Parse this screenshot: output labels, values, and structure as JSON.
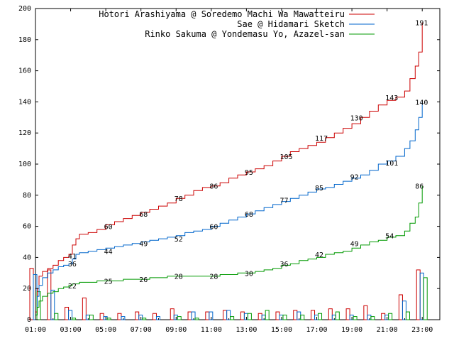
{
  "chart_data": {
    "type": "line",
    "title": "",
    "xlabel": "",
    "ylabel": "",
    "xlim": [
      1,
      24
    ],
    "ylim": [
      0,
      200
    ],
    "x_ticks": [
      "01:00",
      "03:00",
      "05:00",
      "07:00",
      "09:00",
      "11:00",
      "13:00",
      "15:00",
      "17:00",
      "19:00",
      "21:00",
      "23:00"
    ],
    "y_ticks": [
      0,
      20,
      40,
      60,
      80,
      100,
      120,
      140,
      160,
      180,
      200
    ],
    "grid": false,
    "legend_position": "top-right",
    "series": [
      {
        "name": "Hotori Arashiyama @ Soredemo Machi Wa Mawatteiru",
        "color": "#cc0000",
        "cumulative": {
          "x": [
            1.0,
            1.1,
            1.2,
            1.4,
            1.7,
            2.0,
            2.3,
            2.6,
            2.9,
            3.1,
            3.3,
            3.5,
            4.0,
            4.5,
            5.0,
            5.5,
            6.0,
            6.5,
            7.0,
            7.5,
            8.0,
            8.5,
            9.0,
            9.5,
            10.0,
            10.5,
            11.0,
            11.5,
            12.0,
            12.5,
            13.0,
            13.5,
            14.0,
            14.5,
            15.0,
            15.5,
            16.0,
            16.5,
            17.0,
            17.5,
            18.0,
            18.5,
            19.0,
            19.5,
            20.0,
            20.5,
            21.0,
            21.5,
            22.0,
            22.3,
            22.6,
            22.8,
            23.0
          ],
          "y": [
            5,
            20,
            28,
            31,
            33,
            35,
            38,
            40,
            42,
            48,
            52,
            55,
            56,
            58,
            61,
            63,
            65,
            67,
            69,
            71,
            73,
            75,
            78,
            80,
            83,
            85,
            86,
            88,
            91,
            93,
            95,
            97,
            99,
            102,
            105,
            108,
            110,
            112,
            114,
            117,
            120,
            123,
            126,
            130,
            134,
            138,
            141,
            143,
            147,
            155,
            163,
            172,
            191
          ]
        },
        "labels": [
          {
            "x": 2.85,
            "y": 41,
            "text": "41"
          },
          {
            "x": 4.9,
            "y": 60,
            "text": "60"
          },
          {
            "x": 6.9,
            "y": 68,
            "text": "68"
          },
          {
            "x": 8.9,
            "y": 78,
            "text": "78"
          },
          {
            "x": 10.9,
            "y": 86,
            "text": "86"
          },
          {
            "x": 12.9,
            "y": 95,
            "text": "95"
          },
          {
            "x": 14.9,
            "y": 105,
            "text": "105"
          },
          {
            "x": 16.9,
            "y": 117,
            "text": "117"
          },
          {
            "x": 18.9,
            "y": 130,
            "text": "130"
          },
          {
            "x": 20.9,
            "y": 143,
            "text": "143"
          },
          {
            "x": 22.6,
            "y": 191,
            "text": "191"
          }
        ],
        "hourly": [
          33,
          32,
          8,
          14,
          4,
          4,
          5,
          4,
          7,
          5,
          5,
          6,
          5,
          4,
          5,
          6,
          6,
          7,
          7,
          9,
          4,
          16,
          32
        ]
      },
      {
        "name": "Sae @ Hidamari Sketch",
        "color": "#0066cc",
        "cumulative": {
          "x": [
            1.0,
            1.1,
            1.2,
            1.4,
            1.7,
            2.0,
            2.3,
            2.6,
            2.9,
            3.1,
            3.3,
            3.5,
            4.0,
            4.5,
            5.0,
            5.5,
            6.0,
            6.5,
            7.0,
            7.5,
            8.0,
            8.5,
            9.0,
            9.5,
            10.0,
            10.5,
            11.0,
            11.5,
            12.0,
            12.5,
            13.0,
            13.5,
            14.0,
            14.5,
            15.0,
            15.5,
            16.0,
            16.5,
            17.0,
            17.5,
            18.0,
            18.5,
            19.0,
            19.5,
            20.0,
            20.5,
            21.0,
            21.5,
            22.0,
            22.3,
            22.6,
            22.8,
            23.0
          ],
          "y": [
            3,
            15,
            22,
            27,
            30,
            32,
            34,
            35,
            36,
            39,
            42,
            43,
            44,
            45,
            46,
            47,
            48,
            49,
            50,
            51,
            52,
            53,
            54,
            56,
            57,
            58,
            60,
            62,
            64,
            66,
            68,
            70,
            72,
            74,
            76,
            78,
            80,
            82,
            84,
            85,
            87,
            89,
            91,
            93,
            96,
            100,
            102,
            105,
            110,
            115,
            122,
            130,
            140
          ]
        },
        "labels": [
          {
            "x": 2.85,
            "y": 36,
            "text": "36"
          },
          {
            "x": 4.9,
            "y": 44,
            "text": "44"
          },
          {
            "x": 6.9,
            "y": 49,
            "text": "49"
          },
          {
            "x": 8.9,
            "y": 52,
            "text": "52"
          },
          {
            "x": 10.9,
            "y": 60,
            "text": "60"
          },
          {
            "x": 12.9,
            "y": 68,
            "text": "68"
          },
          {
            "x": 14.9,
            "y": 77,
            "text": "77"
          },
          {
            "x": 16.9,
            "y": 85,
            "text": "85"
          },
          {
            "x": 18.9,
            "y": 92,
            "text": "92"
          },
          {
            "x": 20.9,
            "y": 101,
            "text": "101"
          },
          {
            "x": 22.6,
            "y": 140,
            "text": "140"
          }
        ],
        "hourly": [
          29,
          19,
          6,
          3,
          2,
          2,
          3,
          2,
          3,
          5,
          5,
          6,
          4,
          3,
          3,
          5,
          3,
          3,
          3,
          3,
          3,
          12,
          30
        ]
      },
      {
        "name": "Rinko Sakuma @ Yondemasu Yo, Azazel-san",
        "color": "#009900",
        "cumulative": {
          "x": [
            1.0,
            1.1,
            1.2,
            1.4,
            1.7,
            2.0,
            2.3,
            2.6,
            2.9,
            3.1,
            3.5,
            4.0,
            4.5,
            5.0,
            5.5,
            6.0,
            6.5,
            7.0,
            7.5,
            8.0,
            8.5,
            9.0,
            9.5,
            10.0,
            10.5,
            11.0,
            11.5,
            12.0,
            12.5,
            13.0,
            13.5,
            14.0,
            14.5,
            15.0,
            15.5,
            16.0,
            16.5,
            17.0,
            17.5,
            18.0,
            18.5,
            19.0,
            19.5,
            20.0,
            20.5,
            21.0,
            21.5,
            22.0,
            22.3,
            22.6,
            22.8,
            23.0
          ],
          "y": [
            3,
            8,
            12,
            15,
            17,
            18,
            20,
            21,
            22,
            23,
            24,
            24,
            25,
            25,
            25,
            26,
            26,
            26,
            27,
            27,
            28,
            28,
            28,
            28,
            28,
            28,
            29,
            29,
            30,
            30,
            31,
            32,
            33,
            35,
            36,
            38,
            39,
            40,
            42,
            43,
            44,
            46,
            48,
            50,
            51,
            53,
            54,
            57,
            62,
            66,
            75,
            86
          ]
        },
        "labels": [
          {
            "x": 2.85,
            "y": 22,
            "text": "22"
          },
          {
            "x": 4.9,
            "y": 25,
            "text": "25"
          },
          {
            "x": 6.9,
            "y": 26,
            "text": "26"
          },
          {
            "x": 8.9,
            "y": 28,
            "text": "28"
          },
          {
            "x": 10.9,
            "y": 28,
            "text": "28"
          },
          {
            "x": 12.9,
            "y": 30,
            "text": "30"
          },
          {
            "x": 14.9,
            "y": 36,
            "text": "36"
          },
          {
            "x": 16.9,
            "y": 42,
            "text": "42"
          },
          {
            "x": 18.9,
            "y": 49,
            "text": "49"
          },
          {
            "x": 20.9,
            "y": 54,
            "text": "54"
          },
          {
            "x": 22.6,
            "y": 86,
            "text": "86"
          }
        ],
        "hourly": [
          18,
          4,
          1,
          3,
          1,
          0,
          1,
          0,
          2,
          1,
          0,
          2,
          4,
          6,
          3,
          3,
          4,
          5,
          2,
          2,
          4,
          5,
          27
        ]
      }
    ]
  }
}
